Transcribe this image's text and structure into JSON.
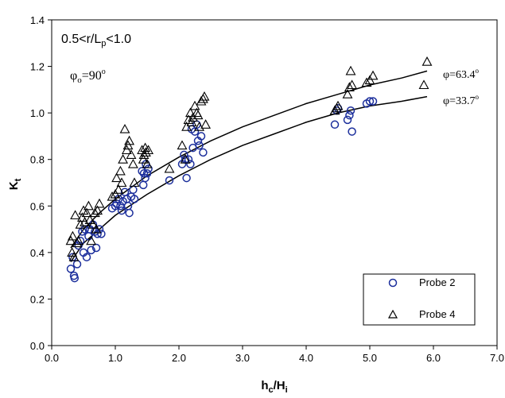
{
  "chart_data": {
    "type": "scatter",
    "title": "",
    "xlabel": {
      "main": "h",
      "sub1": "c",
      "sep": "/H",
      "sub2": "i"
    },
    "ylabel": {
      "main": "K",
      "sub": "t"
    },
    "xlim": [
      0.0,
      7.0
    ],
    "ylim": [
      0.0,
      1.4
    ],
    "xticks": [
      "0.0",
      "1.0",
      "2.0",
      "3.0",
      "4.0",
      "5.0",
      "6.0",
      "7.0"
    ],
    "yticks": [
      "0.0",
      "0.2",
      "0.4",
      "0.6",
      "0.8",
      "1.0",
      "1.2",
      "1.4"
    ],
    "grid": false,
    "legend_position": "bottom-right",
    "annotations": {
      "range": {
        "a": "0.5<r/L",
        "sub": "p",
        "b": "<1.0"
      },
      "phi0": {
        "a": "φ",
        "sub": "o",
        "b": "=90",
        "sup": "o"
      },
      "curve_upper": {
        "a": "φ=63.4",
        "sup": "o"
      },
      "curve_lower": {
        "a": "φ=33.7",
        "sup": "o"
      }
    },
    "series": [
      {
        "name": "Probe 2",
        "marker": "circle",
        "color": "#1c2f9c",
        "points": [
          [
            0.3,
            0.33
          ],
          [
            0.33,
            0.38
          ],
          [
            0.35,
            0.3
          ],
          [
            0.36,
            0.29
          ],
          [
            0.4,
            0.35
          ],
          [
            0.42,
            0.43
          ],
          [
            0.45,
            0.45
          ],
          [
            0.48,
            0.49
          ],
          [
            0.5,
            0.4
          ],
          [
            0.52,
            0.5
          ],
          [
            0.55,
            0.38
          ],
          [
            0.58,
            0.47
          ],
          [
            0.6,
            0.5
          ],
          [
            0.62,
            0.41
          ],
          [
            0.65,
            0.52
          ],
          [
            0.68,
            0.49
          ],
          [
            0.7,
            0.42
          ],
          [
            0.72,
            0.48
          ],
          [
            0.75,
            0.5
          ],
          [
            0.78,
            0.48
          ],
          [
            0.95,
            0.59
          ],
          [
            1.0,
            0.6
          ],
          [
            1.02,
            0.61
          ],
          [
            1.05,
            0.63
          ],
          [
            1.08,
            0.6
          ],
          [
            1.1,
            0.58
          ],
          [
            1.12,
            0.62
          ],
          [
            1.15,
            0.66
          ],
          [
            1.18,
            0.63
          ],
          [
            1.2,
            0.6
          ],
          [
            1.22,
            0.57
          ],
          [
            1.25,
            0.64
          ],
          [
            1.28,
            0.67
          ],
          [
            1.3,
            0.63
          ],
          [
            1.42,
            0.75
          ],
          [
            1.44,
            0.69
          ],
          [
            1.45,
            0.74
          ],
          [
            1.47,
            0.72
          ],
          [
            1.48,
            0.78
          ],
          [
            1.5,
            0.74
          ],
          [
            1.52,
            0.76
          ],
          [
            1.85,
            0.71
          ],
          [
            2.05,
            0.78
          ],
          [
            2.08,
            0.82
          ],
          [
            2.1,
            0.8
          ],
          [
            2.12,
            0.72
          ],
          [
            2.15,
            0.8
          ],
          [
            2.18,
            0.78
          ],
          [
            2.2,
            0.93
          ],
          [
            2.22,
            0.85
          ],
          [
            2.25,
            0.92
          ],
          [
            2.28,
            0.95
          ],
          [
            2.3,
            0.88
          ],
          [
            2.32,
            0.86
          ],
          [
            2.35,
            0.9
          ],
          [
            2.38,
            0.83
          ],
          [
            4.45,
            0.95
          ],
          [
            4.48,
            1.01
          ],
          [
            4.5,
            1.02
          ],
          [
            4.65,
            0.97
          ],
          [
            4.68,
            0.99
          ],
          [
            4.7,
            1.01
          ],
          [
            4.72,
            0.92
          ],
          [
            4.95,
            1.04
          ],
          [
            5.0,
            1.05
          ],
          [
            5.05,
            1.05
          ]
        ]
      },
      {
        "name": "Probe 4",
        "marker": "triangle",
        "color": "#000000",
        "points": [
          [
            0.3,
            0.45
          ],
          [
            0.32,
            0.4
          ],
          [
            0.33,
            0.47
          ],
          [
            0.35,
            0.38
          ],
          [
            0.37,
            0.56
          ],
          [
            0.4,
            0.44
          ],
          [
            0.42,
            0.45
          ],
          [
            0.45,
            0.52
          ],
          [
            0.48,
            0.55
          ],
          [
            0.5,
            0.58
          ],
          [
            0.52,
            0.53
          ],
          [
            0.55,
            0.57
          ],
          [
            0.58,
            0.6
          ],
          [
            0.6,
            0.54
          ],
          [
            0.62,
            0.45
          ],
          [
            0.65,
            0.52
          ],
          [
            0.68,
            0.57
          ],
          [
            0.7,
            0.5
          ],
          [
            0.72,
            0.58
          ],
          [
            0.75,
            0.61
          ],
          [
            0.95,
            0.64
          ],
          [
            1.0,
            0.65
          ],
          [
            1.02,
            0.72
          ],
          [
            1.05,
            0.67
          ],
          [
            1.08,
            0.75
          ],
          [
            1.1,
            0.7
          ],
          [
            1.12,
            0.8
          ],
          [
            1.15,
            0.93
          ],
          [
            1.18,
            0.84
          ],
          [
            1.2,
            0.86
          ],
          [
            1.22,
            0.88
          ],
          [
            1.25,
            0.82
          ],
          [
            1.28,
            0.78
          ],
          [
            1.3,
            0.7
          ],
          [
            1.42,
            0.84
          ],
          [
            1.44,
            0.8
          ],
          [
            1.45,
            0.82
          ],
          [
            1.47,
            0.85
          ],
          [
            1.48,
            0.83
          ],
          [
            1.5,
            0.78
          ],
          [
            1.52,
            0.84
          ],
          [
            1.85,
            0.76
          ],
          [
            2.05,
            0.86
          ],
          [
            2.1,
            0.8
          ],
          [
            2.12,
            0.94
          ],
          [
            2.15,
            0.97
          ],
          [
            2.18,
            1.0
          ],
          [
            2.2,
            0.96
          ],
          [
            2.22,
            0.98
          ],
          [
            2.25,
            1.03
          ],
          [
            2.28,
            1.0
          ],
          [
            2.3,
            0.99
          ],
          [
            2.32,
            0.94
          ],
          [
            2.35,
            1.05
          ],
          [
            2.38,
            1.06
          ],
          [
            2.4,
            1.07
          ],
          [
            2.42,
            0.95
          ],
          [
            4.45,
            1.01
          ],
          [
            4.48,
            1.02
          ],
          [
            4.5,
            1.03
          ],
          [
            4.65,
            1.08
          ],
          [
            4.68,
            1.11
          ],
          [
            4.7,
            1.18
          ],
          [
            4.72,
            1.12
          ],
          [
            4.95,
            1.13
          ],
          [
            5.0,
            1.14
          ],
          [
            5.05,
            1.16
          ],
          [
            5.85,
            1.12
          ],
          [
            5.9,
            1.22
          ]
        ]
      }
    ],
    "curves": [
      {
        "label_key": "curve_upper",
        "points": [
          [
            0.3,
            0.42
          ],
          [
            0.5,
            0.5
          ],
          [
            0.75,
            0.57
          ],
          [
            1.0,
            0.63
          ],
          [
            1.5,
            0.73
          ],
          [
            2.0,
            0.81
          ],
          [
            2.5,
            0.88
          ],
          [
            3.0,
            0.94
          ],
          [
            3.5,
            0.99
          ],
          [
            4.0,
            1.04
          ],
          [
            4.5,
            1.08
          ],
          [
            5.0,
            1.12
          ],
          [
            5.5,
            1.15
          ],
          [
            5.9,
            1.18
          ]
        ]
      },
      {
        "label_key": "curve_lower",
        "points": [
          [
            0.3,
            0.36
          ],
          [
            0.5,
            0.44
          ],
          [
            0.75,
            0.5
          ],
          [
            1.0,
            0.56
          ],
          [
            1.5,
            0.65
          ],
          [
            2.0,
            0.73
          ],
          [
            2.5,
            0.8
          ],
          [
            3.0,
            0.86
          ],
          [
            3.5,
            0.91
          ],
          [
            4.0,
            0.96
          ],
          [
            4.5,
            1.0
          ],
          [
            5.0,
            1.03
          ],
          [
            5.5,
            1.05
          ],
          [
            5.9,
            1.07
          ]
        ]
      }
    ]
  }
}
